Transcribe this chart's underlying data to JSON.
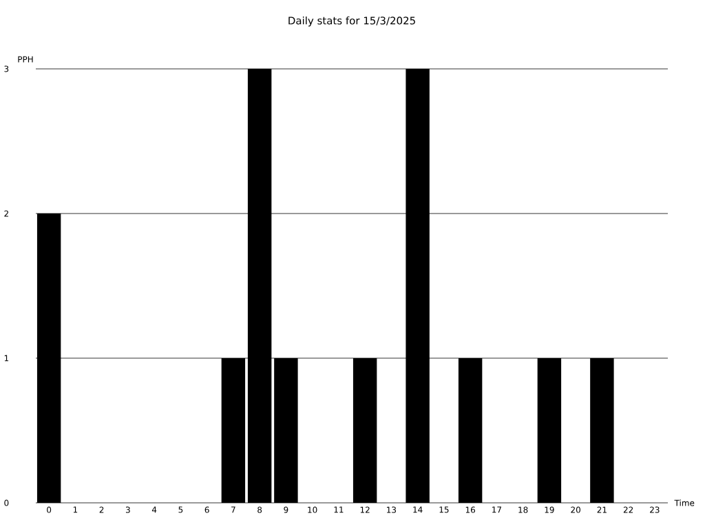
{
  "chart_data": {
    "type": "bar",
    "title": "Daily stats for 15/3/2025",
    "xlabel": "Time",
    "ylabel": "PPH",
    "categories": [
      "0",
      "1",
      "2",
      "3",
      "4",
      "5",
      "6",
      "7",
      "8",
      "9",
      "10",
      "11",
      "12",
      "13",
      "14",
      "15",
      "16",
      "17",
      "18",
      "19",
      "20",
      "21",
      "22",
      "23"
    ],
    "values": [
      2,
      0,
      0,
      0,
      0,
      0,
      0,
      1,
      3,
      1,
      0,
      0,
      1,
      0,
      3,
      0,
      1,
      0,
      0,
      1,
      0,
      1,
      0,
      0
    ],
    "color": "#000000",
    "ylim": [
      0,
      3
    ],
    "yticks": [
      0,
      1,
      2,
      3
    ],
    "grid": "y"
  }
}
